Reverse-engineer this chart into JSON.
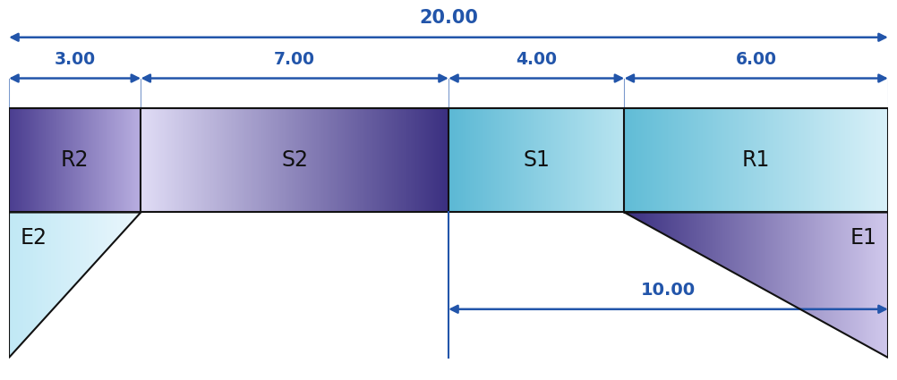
{
  "fig_width": 10.02,
  "fig_height": 4.25,
  "dpi": 100,
  "bg_color": "#ffffff",
  "arrow_color": "#2255aa",
  "line_color": "#111111",
  "label_color": "#111111",
  "total_width": 20.0,
  "segments": [
    3.0,
    7.0,
    4.0,
    6.0
  ],
  "segment_labels": [
    "R2",
    "S2",
    "S1",
    "R1"
  ],
  "segment_dim_labels": [
    "3.00",
    "7.00",
    "4.00",
    "6.00"
  ],
  "total_label": "20.00",
  "bottom_label": "10.00",
  "colors_R2_left": "#4a3d8f",
  "colors_R2_right": "#b8aee0",
  "colors_S2_left": "#e0dcf5",
  "colors_S2_right": "#3a2f80",
  "colors_S1_left": "#5bb8d4",
  "colors_S1_right": "#b8e4f0",
  "colors_R1_left": "#60bcd6",
  "colors_R1_right": "#d8f0f8",
  "colors_E2_left": "#c0e8f5",
  "colors_E2_right": "#eaf6fc",
  "colors_E1_left": "#3a2f80",
  "colors_E1_right": "#d0c8ec"
}
